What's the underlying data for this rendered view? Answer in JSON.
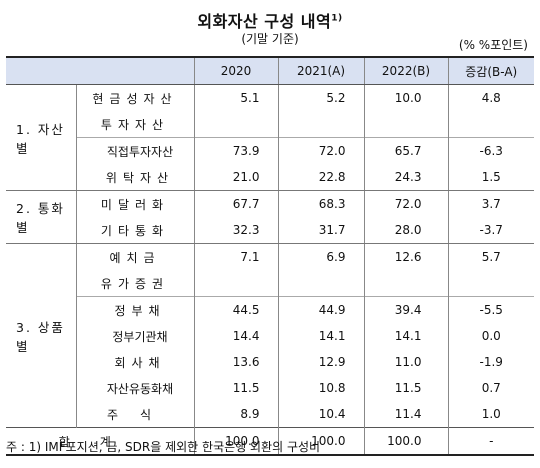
{
  "title": "외화자산 구성 내역",
  "title_sup": "1)",
  "subtitle": "(기말 기준)",
  "unit": "(% %포인트)",
  "headers": [
    "",
    "",
    "2020",
    "2021(A)",
    "2022(B)",
    "증감(B-A)"
  ],
  "categories": {
    "asset": "1. 자산별",
    "currency": "2. 통화별",
    "product": "3. 상품별"
  },
  "rows": [
    {
      "label": "현금성자산",
      "v2020": "5.1",
      "v2021": "5.2",
      "v2022": "10.0",
      "diff": "4.8"
    },
    {
      "label": "투자자산",
      "v2020": "",
      "v2021": "",
      "v2022": "",
      "diff": ""
    },
    {
      "label": "직접투자자산",
      "v2020": "73.9",
      "v2021": "72.0",
      "v2022": "65.7",
      "diff": "-6.3"
    },
    {
      "label": "위탁자산",
      "v2020": "21.0",
      "v2021": "22.8",
      "v2022": "24.3",
      "diff": "1.5"
    },
    {
      "label": "미달러화",
      "v2020": "67.7",
      "v2021": "68.3",
      "v2022": "72.0",
      "diff": "3.7"
    },
    {
      "label": "기타통화",
      "v2020": "32.3",
      "v2021": "31.7",
      "v2022": "28.0",
      "diff": "-3.7"
    },
    {
      "label": "예치금",
      "v2020": "7.1",
      "v2021": "6.9",
      "v2022": "12.6",
      "diff": "5.7"
    },
    {
      "label": "유가증권",
      "v2020": "",
      "v2021": "",
      "v2022": "",
      "diff": ""
    },
    {
      "label": "정부채",
      "v2020": "44.5",
      "v2021": "44.9",
      "v2022": "39.4",
      "diff": "-5.5"
    },
    {
      "label": "정부기관채",
      "v2020": "14.4",
      "v2021": "14.1",
      "v2022": "14.1",
      "diff": "0.0"
    },
    {
      "label": "회사채",
      "v2020": "13.6",
      "v2021": "12.9",
      "v2022": "11.0",
      "diff": "-1.9"
    },
    {
      "label": "자산유동화채",
      "v2020": "11.5",
      "v2021": "10.8",
      "v2022": "11.5",
      "diff": "0.7"
    },
    {
      "label": "주식",
      "v2020": "8.9",
      "v2021": "10.4",
      "v2022": "11.4",
      "diff": "1.0"
    }
  ],
  "total": {
    "label": "합계",
    "v2020": "100.0",
    "v2021": "100.0",
    "v2022": "100.0",
    "diff": "-"
  },
  "note": "주 : 1) IMF포지션, 금, SDR을 제외한 한국은행 외환의 구성비"
}
